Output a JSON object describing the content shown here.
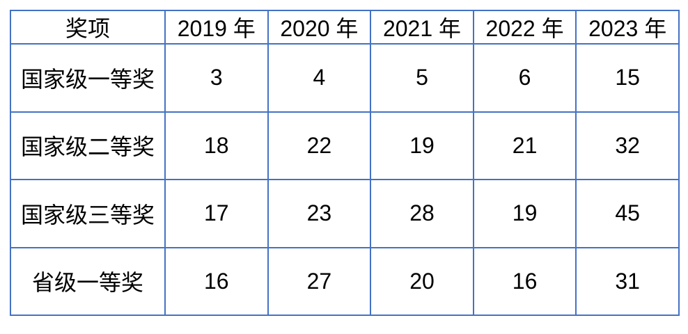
{
  "table": {
    "title_semantic": "awards-by-year-table",
    "border_color": "#4472C4",
    "text_color": "#000000",
    "background_color": "#ffffff",
    "headers": [
      "奖项",
      "2019 年",
      "2020 年",
      "2021 年",
      "2022 年",
      "2023 年"
    ],
    "rows": [
      {
        "label": "国家级一等奖",
        "values": [
          "3",
          "4",
          "5",
          "6",
          "15"
        ]
      },
      {
        "label": "国家级二等奖",
        "values": [
          "18",
          "22",
          "19",
          "21",
          "32"
        ]
      },
      {
        "label": "国家级三等奖",
        "values": [
          "17",
          "23",
          "28",
          "19",
          "45"
        ]
      },
      {
        "label": "省级一等奖",
        "values": [
          "16",
          "27",
          "20",
          "16",
          "31"
        ]
      }
    ]
  },
  "chart_data": {
    "type": "table",
    "categories": [
      "2019 年",
      "2020 年",
      "2021 年",
      "2022 年",
      "2023 年"
    ],
    "series": [
      {
        "name": "国家级一等奖",
        "values": [
          3,
          4,
          5,
          6,
          15
        ]
      },
      {
        "name": "国家级二等奖",
        "values": [
          18,
          22,
          19,
          21,
          32
        ]
      },
      {
        "name": "国家级三等奖",
        "values": [
          17,
          23,
          28,
          19,
          45
        ]
      },
      {
        "name": "省级一等奖",
        "values": [
          16,
          27,
          20,
          16,
          31
        ]
      }
    ],
    "title": "",
    "xlabel": "奖项",
    "ylabel": ""
  }
}
